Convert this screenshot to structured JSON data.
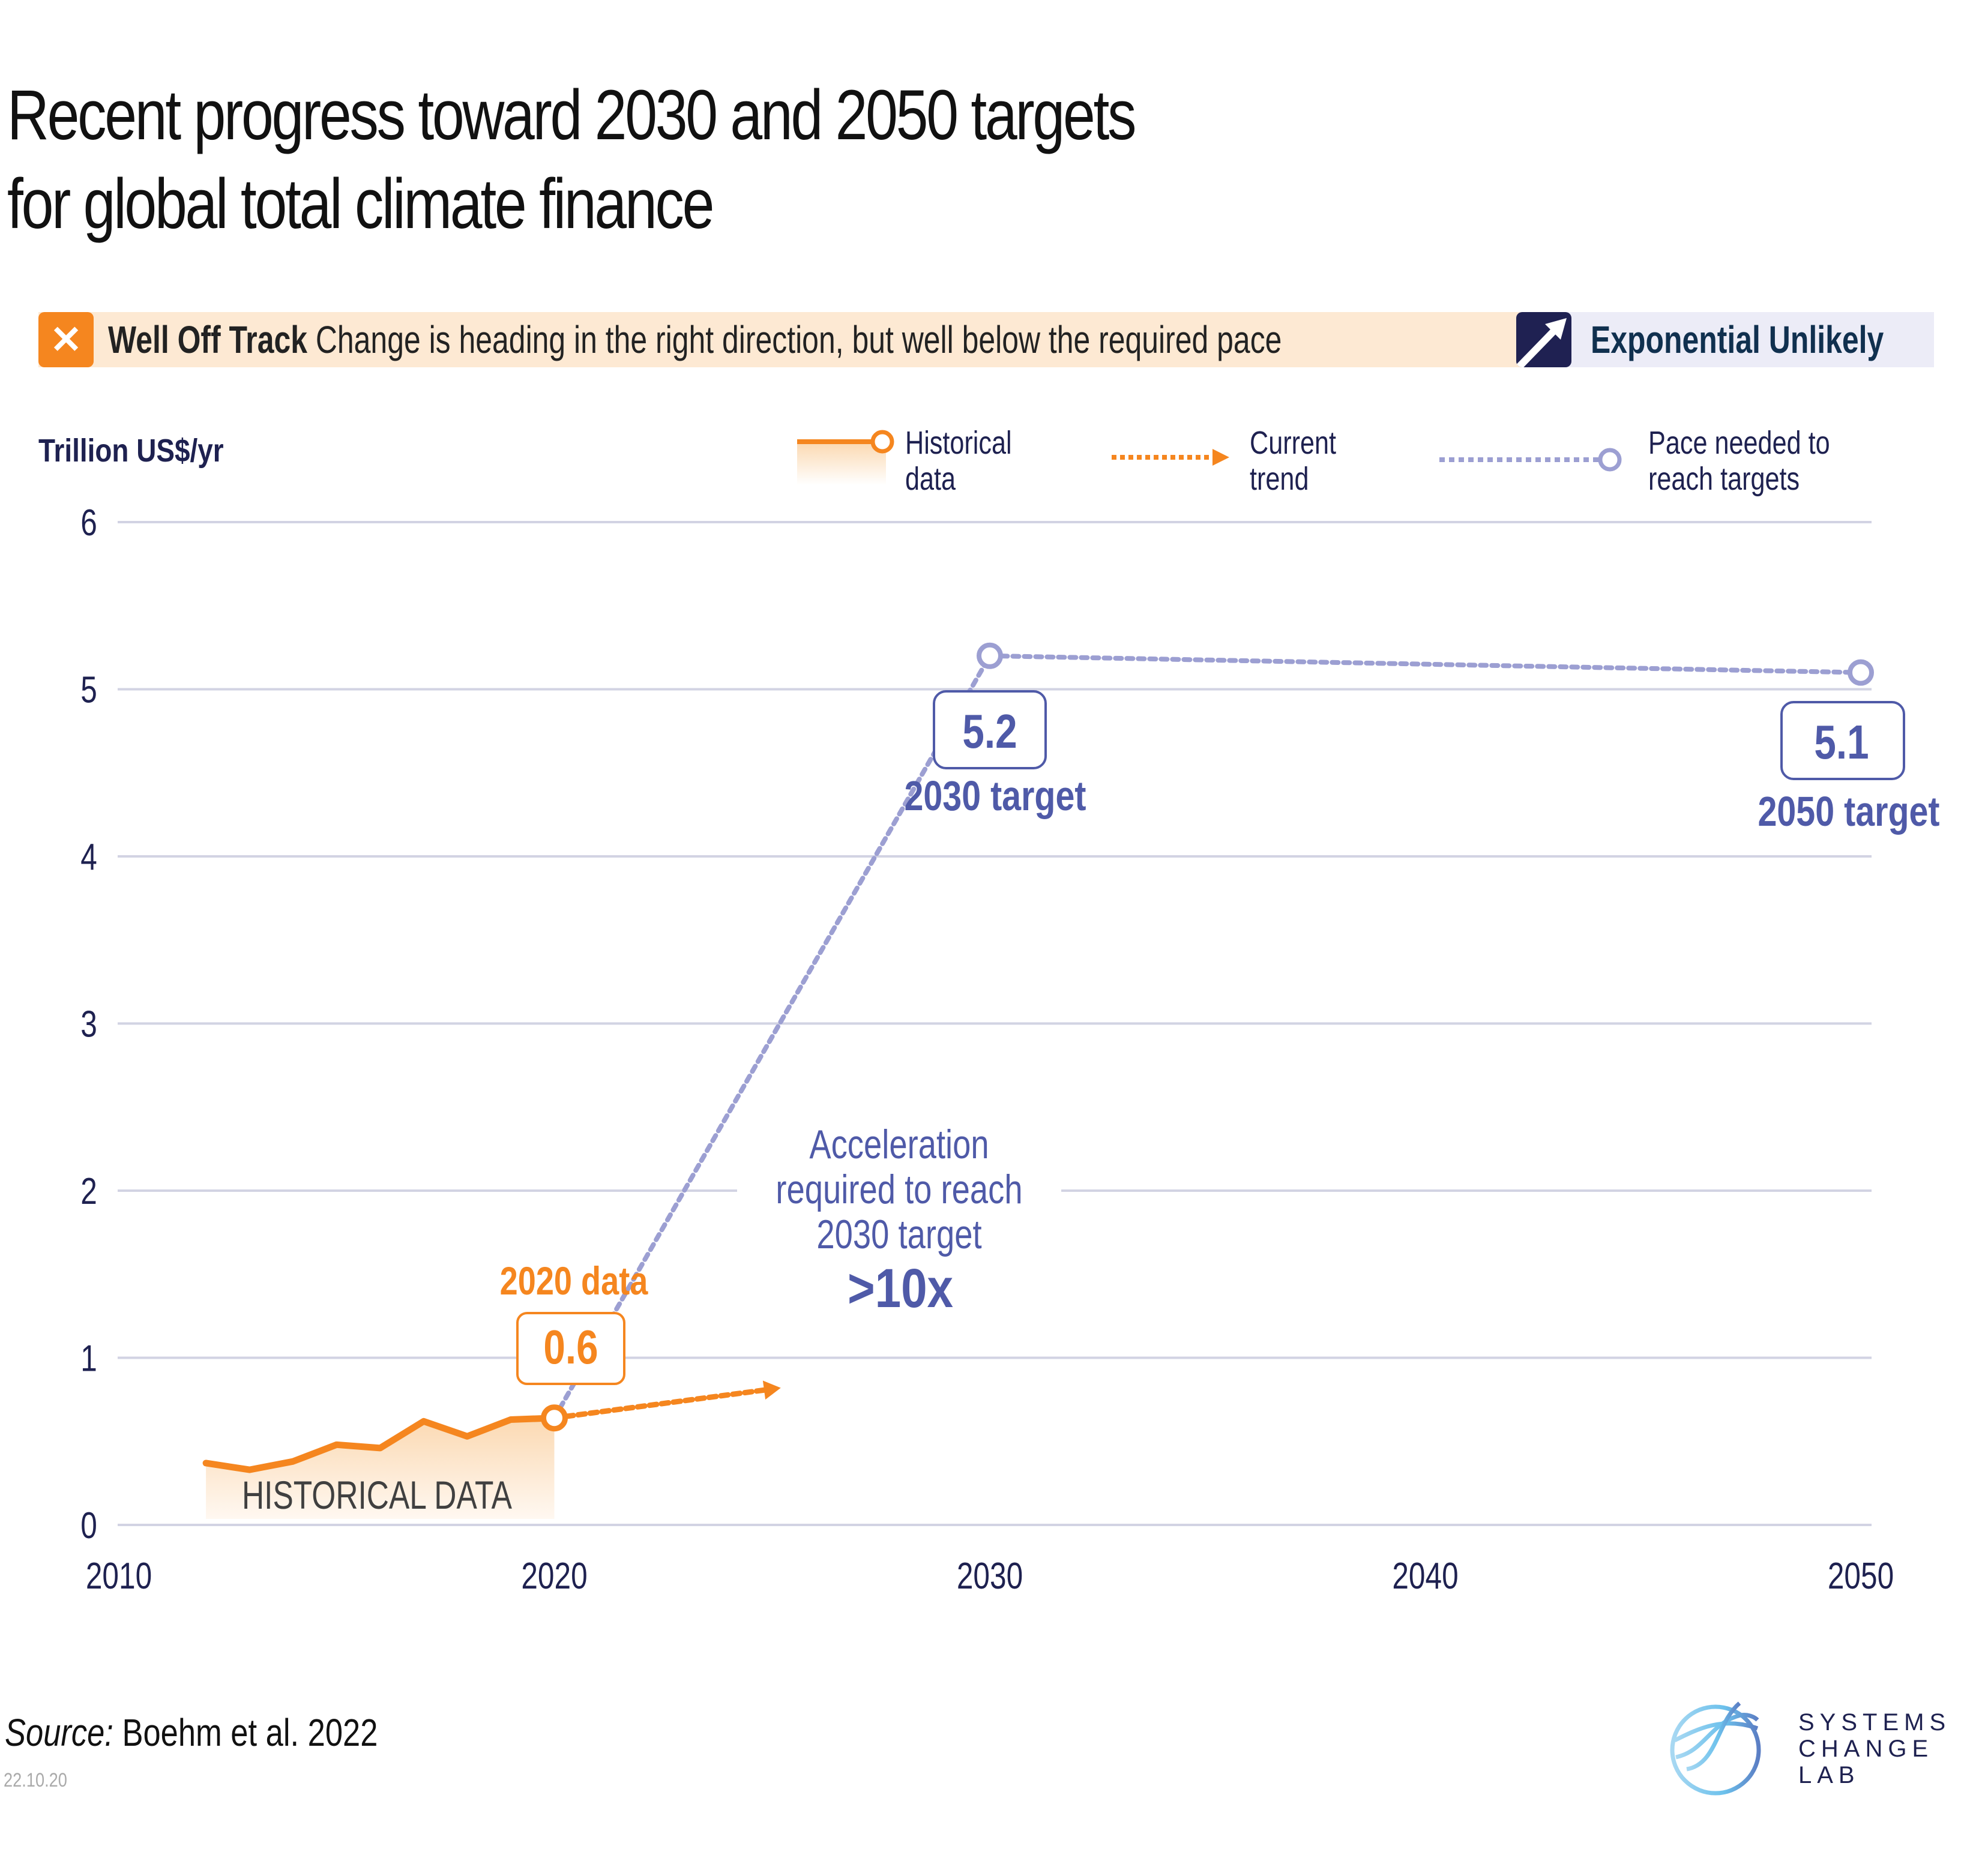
{
  "title": {
    "line1": "Recent progress toward 2030 and 2050 targets",
    "line2": "for global total climate finance"
  },
  "status": {
    "icon": "x-icon",
    "label": "Well Off Track",
    "description": "Change is heading in the right direction, but well below the required pace",
    "label_bg": "#fde9d3",
    "accent": "#f5861f"
  },
  "curve": {
    "icon": "arrow-up-right-icon",
    "label": "Exponential Unlikely",
    "bg": "#ececf7",
    "accent": "#1f2152"
  },
  "legend": {
    "historical": "Historical\ndata",
    "current_trend": "Current\ntrend",
    "pace_needed": "Pace needed to\nreach targets"
  },
  "annotations": {
    "historical_area": "HISTORICAL DATA",
    "data_2020_label": "2020 data",
    "data_2020_value": "0.6",
    "target_2030_value": "5.2",
    "target_2030_label": "2030 target",
    "target_2050_value": "5.1",
    "target_2050_label": "2050 target",
    "acceleration_line1": "Acceleration",
    "acceleration_line2": "required to reach",
    "acceleration_line3": "2030 target",
    "acceleration_factor": ">10x"
  },
  "footer": {
    "source_prefix": "Source:",
    "source": " Boehm et al. 2022",
    "date": "22.10.20",
    "logo_line1": "SYSTEMS",
    "logo_line2": "CHANGE",
    "logo_line3": "LAB"
  },
  "colors": {
    "historical": "#f5861f",
    "pace": "#9c9fd2",
    "target_text": "#4f5aa8",
    "axis_text": "#1e2150",
    "grid": "#d2d3e3"
  },
  "chart_data": {
    "type": "line",
    "title": "Recent progress toward 2030 and 2050 targets for global total climate finance",
    "xlabel": "",
    "ylabel": "Trillion US$/yr",
    "xlim": [
      2010,
      2050
    ],
    "ylim": [
      0,
      6
    ],
    "xticks": [
      2010,
      2020,
      2030,
      2040,
      2050
    ],
    "yticks": [
      0,
      1,
      2,
      3,
      4,
      5,
      6
    ],
    "grid": true,
    "legend_position": "top",
    "series": [
      {
        "name": "Historical data",
        "style": "solid-area",
        "x": [
          2012,
          2013,
          2014,
          2015,
          2016,
          2017,
          2018,
          2019,
          2020
        ],
        "values": [
          0.37,
          0.33,
          0.38,
          0.48,
          0.46,
          0.62,
          0.53,
          0.63,
          0.64
        ]
      },
      {
        "name": "Current trend",
        "style": "dotted-arrow",
        "x": [
          2020,
          2025.2
        ],
        "values": [
          0.64,
          0.82
        ]
      },
      {
        "name": "Pace needed to reach targets",
        "style": "dotted",
        "x": [
          2020,
          2030,
          2050
        ],
        "values": [
          0.64,
          5.2,
          5.1
        ]
      }
    ]
  }
}
